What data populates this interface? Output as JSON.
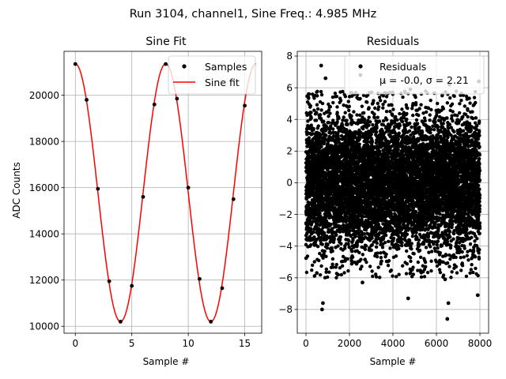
{
  "suptitle": "Run 3104, channel1, Sine Freq.: 4.985 MHz",
  "chart_data": [
    {
      "type": "scatter+line",
      "title": "Sine Fit",
      "xlabel": "Sample #",
      "ylabel": "ADC Counts",
      "xlim": [
        -1,
        16.5
      ],
      "ylim": [
        9700,
        21900
      ],
      "xticks": [
        0,
        5,
        10,
        15
      ],
      "yticks": [
        10000,
        12000,
        14000,
        16000,
        18000,
        20000
      ],
      "grid": true,
      "legend": {
        "position": "top-right",
        "entries": [
          "Samples",
          "Sine fit"
        ]
      },
      "samples": {
        "name": "Samples",
        "color": "#000000",
        "x": [
          0,
          1,
          2,
          3,
          4,
          5,
          6,
          7,
          8,
          9,
          10,
          11,
          12,
          13,
          14,
          15
        ],
        "y": [
          21350,
          19800,
          15950,
          11950,
          10200,
          11750,
          15600,
          19600,
          21350,
          19850,
          16000,
          12050,
          10200,
          11650,
          15500,
          19550
        ]
      },
      "fit": {
        "name": "Sine fit",
        "color": "#ff0000",
        "amplitude": 5580,
        "offset": 15780,
        "period": 8.0,
        "phase_deg": 90,
        "x_range": [
          0,
          16
        ]
      }
    },
    {
      "type": "scatter",
      "title": "Residuals",
      "xlabel": "Sample #",
      "ylabel": "",
      "xlim": [
        -400,
        8400
      ],
      "ylim": [
        -9.5,
        8.3
      ],
      "xticks": [
        0,
        2000,
        4000,
        6000,
        8000
      ],
      "yticks": [
        -8,
        -6,
        -4,
        -2,
        0,
        2,
        4,
        6,
        8
      ],
      "grid": true,
      "legend": {
        "position": "top-right",
        "entries": [
          "Residuals",
          "μ = -0.0, σ = 2.21"
        ]
      },
      "series": {
        "name": "Residuals",
        "color": "#000000",
        "n_points": 8000,
        "mean": 0.0,
        "std": 2.21
      },
      "outliers": {
        "x": [
          700,
          740,
          780,
          2500,
          3600,
          4700,
          6500,
          6550,
          6600,
          7900,
          7950,
          500,
          900,
          2600,
          4800,
          6400
        ],
        "y": [
          7.4,
          -8.0,
          -7.6,
          6.8,
          6.4,
          -7.3,
          -8.6,
          -7.6,
          6.2,
          -7.1,
          6.4,
          -5.7,
          6.6,
          -6.3,
          5.9,
          -6.1
        ]
      }
    }
  ]
}
